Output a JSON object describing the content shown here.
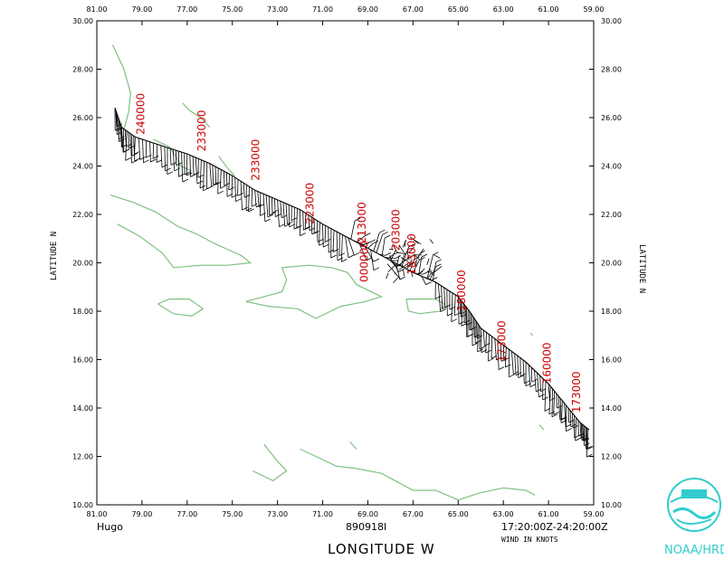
{
  "chart_data": {
    "type": "map",
    "storm_name": "Hugo",
    "date_code": "890918I",
    "time_range": "17:20:00Z-24:20:00Z",
    "wind_units_note": "WIND IN KNOTS",
    "xlabel": "LONGITUDE  W",
    "ylabel_left": "LATITUDE  N",
    "ylabel_right": "LATITUDE  N",
    "xlim": [
      81,
      59
    ],
    "ylim": [
      10,
      30
    ],
    "x_ticks": [
      "81.00",
      "79.00",
      "77.00",
      "75.00",
      "73.00",
      "71.00",
      "69.00",
      "67.00",
      "65.00",
      "63.00",
      "61.00",
      "59.00"
    ],
    "y_ticks": [
      "10.00",
      "12.00",
      "14.00",
      "16.00",
      "18.00",
      "20.00",
      "22.00",
      "24.00",
      "26.00",
      "28.00",
      "30.00"
    ],
    "grid": false,
    "coast_color": "#80c080",
    "barb_color": "#000000",
    "label_color": "#cc0000",
    "flight_track": [
      [
        80.2,
        26.4
      ],
      [
        79.9,
        25.6
      ],
      [
        79.3,
        25.2
      ],
      [
        78.0,
        24.8
      ],
      [
        77.0,
        24.5
      ],
      [
        76.0,
        24.1
      ],
      [
        75.0,
        23.6
      ],
      [
        74.0,
        23.0
      ],
      [
        73.0,
        22.6
      ],
      [
        72.0,
        22.2
      ],
      [
        71.0,
        21.6
      ],
      [
        70.0,
        21.1
      ],
      [
        69.0,
        20.6
      ],
      [
        68.0,
        20.1
      ],
      [
        67.0,
        19.6
      ],
      [
        66.0,
        19.2
      ],
      [
        65.0,
        18.6
      ],
      [
        64.5,
        18.0
      ],
      [
        64.0,
        17.3
      ],
      [
        63.0,
        16.6
      ],
      [
        62.0,
        15.9
      ],
      [
        61.0,
        15.0
      ],
      [
        60.3,
        14.2
      ],
      [
        59.6,
        13.4
      ],
      [
        59.2,
        13.1
      ]
    ],
    "time_labels": [
      {
        "text": "240000",
        "lon": 78.9,
        "lat": 25.3
      },
      {
        "text": "233000",
        "lon": 76.2,
        "lat": 24.6
      },
      {
        "text": "233000",
        "lon": 73.8,
        "lat": 23.4
      },
      {
        "text": "223000",
        "lon": 71.4,
        "lat": 21.6
      },
      {
        "text": "213000",
        "lon": 69.1,
        "lat": 20.8
      },
      {
        "text": "203000",
        "lon": 67.6,
        "lat": 20.5
      },
      {
        "text": "000000",
        "lon": 69.0,
        "lat": 19.2
      },
      {
        "text": "183000",
        "lon": 66.9,
        "lat": 19.5
      },
      {
        "text": "180000",
        "lon": 64.7,
        "lat": 18.0
      },
      {
        "text": "173000",
        "lon": 62.9,
        "lat": 15.9
      },
      {
        "text": "160000",
        "lon": 60.9,
        "lat": 15.0
      },
      {
        "text": "173000",
        "lon": 59.6,
        "lat": 13.8
      }
    ],
    "coastlines": [
      [
        [
          80.3,
          29.0
        ],
        [
          79.8,
          28.0
        ],
        [
          79.5,
          27.0
        ],
        [
          79.6,
          26.2
        ],
        [
          79.8,
          25.5
        ]
      ],
      [
        [
          78.5,
          25.1
        ],
        [
          77.8,
          24.8
        ],
        [
          77.5,
          24.4
        ],
        [
          77.3,
          24.0
        ],
        [
          76.8,
          23.8
        ]
      ],
      [
        [
          77.2,
          26.6
        ],
        [
          76.9,
          26.3
        ],
        [
          76.4,
          26.0
        ],
        [
          76.0,
          25.6
        ]
      ],
      [
        [
          75.6,
          24.4
        ],
        [
          75.2,
          23.9
        ],
        [
          74.9,
          23.6
        ]
      ],
      [
        [
          80.4,
          22.8
        ],
        [
          79.4,
          22.5
        ],
        [
          78.4,
          22.1
        ],
        [
          77.4,
          21.5
        ],
        [
          76.6,
          21.2
        ],
        [
          75.8,
          20.8
        ],
        [
          74.6,
          20.3
        ],
        [
          74.2,
          20.0
        ],
        [
          75.2,
          19.9
        ],
        [
          76.4,
          19.9
        ],
        [
          77.6,
          19.8
        ],
        [
          78.1,
          20.4
        ],
        [
          79.1,
          21.1
        ],
        [
          80.1,
          21.6
        ]
      ],
      [
        [
          78.3,
          18.3
        ],
        [
          77.8,
          18.5
        ],
        [
          76.9,
          18.5
        ],
        [
          76.3,
          18.1
        ],
        [
          76.8,
          17.8
        ],
        [
          77.6,
          17.9
        ],
        [
          78.3,
          18.3
        ]
      ],
      [
        [
          74.4,
          18.4
        ],
        [
          73.6,
          18.6
        ],
        [
          72.8,
          18.8
        ],
        [
          72.6,
          19.3
        ],
        [
          72.8,
          19.8
        ],
        [
          71.6,
          19.9
        ],
        [
          70.6,
          19.8
        ],
        [
          69.9,
          19.6
        ],
        [
          69.5,
          19.1
        ],
        [
          68.4,
          18.6
        ],
        [
          69.1,
          18.4
        ],
        [
          70.2,
          18.2
        ],
        [
          71.3,
          17.7
        ],
        [
          72.1,
          18.1
        ],
        [
          73.4,
          18.2
        ],
        [
          74.4,
          18.4
        ]
      ],
      [
        [
          67.3,
          18.5
        ],
        [
          66.0,
          18.5
        ],
        [
          65.6,
          18.3
        ],
        [
          65.8,
          18.0
        ],
        [
          66.7,
          17.9
        ],
        [
          67.2,
          18.0
        ],
        [
          67.3,
          18.5
        ]
      ],
      [
        [
          61.8,
          17.1
        ],
        [
          61.7,
          17.0
        ]
      ],
      [
        [
          61.0,
          14.8
        ],
        [
          60.9,
          14.4
        ]
      ],
      [
        [
          61.4,
          13.3
        ],
        [
          61.2,
          13.1
        ]
      ],
      [
        [
          72.0,
          12.3
        ],
        [
          71.3,
          12.0
        ],
        [
          70.4,
          11.6
        ],
        [
          69.5,
          11.5
        ],
        [
          68.4,
          11.3
        ],
        [
          67.0,
          10.6
        ],
        [
          66.0,
          10.6
        ],
        [
          65.0,
          10.2
        ],
        [
          64.0,
          10.5
        ],
        [
          63.0,
          10.7
        ],
        [
          62.0,
          10.6
        ],
        [
          61.6,
          10.4
        ]
      ],
      [
        [
          73.6,
          12.5
        ],
        [
          73.0,
          11.8
        ],
        [
          72.6,
          11.4
        ],
        [
          73.2,
          11.0
        ],
        [
          74.1,
          11.4
        ]
      ],
      [
        [
          69.8,
          12.6
        ],
        [
          69.5,
          12.3
        ]
      ]
    ]
  },
  "logo": {
    "text": "NOAA/HRD",
    "color": "#33cccc"
  }
}
